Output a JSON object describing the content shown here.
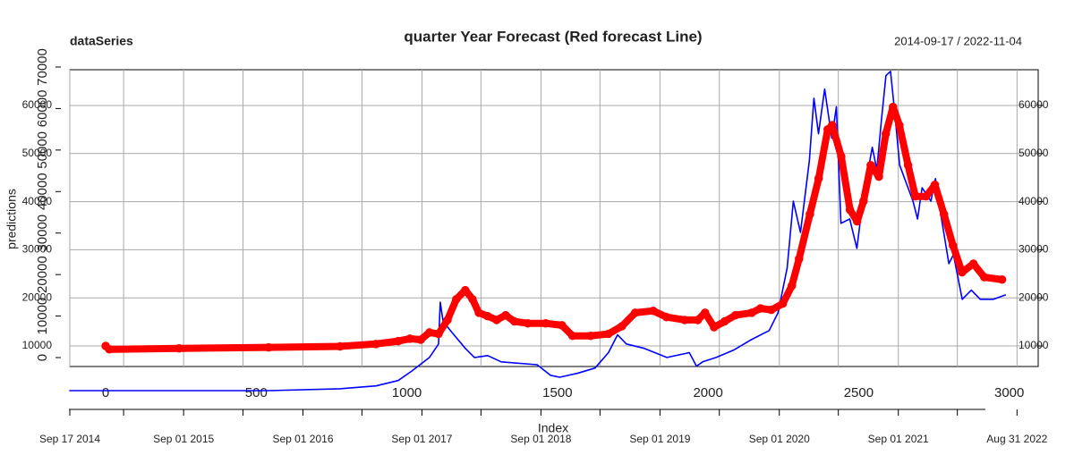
{
  "chart_data": {
    "type": "line",
    "title": "quarter Year Forecast (Red forecast Line)",
    "series_label": "dataSeries",
    "date_range": "2014-09-17 / 2022-11-04",
    "x_label": "Index",
    "y_label": "predictions",
    "grid": true,
    "xlim": [
      -119,
      3096
    ],
    "xticks": [
      0,
      500,
      1000,
      1500,
      2000,
      2500,
      3000
    ],
    "ylim": [
      5725,
      67435
    ],
    "yticks": [
      10000,
      20000,
      30000,
      40000,
      50000,
      60000
    ],
    "y2lim": [
      -2150,
      69350
    ],
    "y2ticks": [
      0,
      10000,
      20000,
      30000,
      40000,
      50000,
      60000,
      70000
    ],
    "date_xlim": [
      "2014-09-17",
      "2022-11-04"
    ],
    "date_ticks": [
      {
        "value": "2014-09-17",
        "label": "Sep 17 2014"
      },
      {
        "value": "2015-03-01",
        "label": null
      },
      {
        "value": "2015-09-01",
        "label": "Sep 01 2015"
      },
      {
        "value": "2016-03-01",
        "label": null
      },
      {
        "value": "2016-09-01",
        "label": "Sep 01 2016"
      },
      {
        "value": "2017-03-01",
        "label": null
      },
      {
        "value": "2017-09-01",
        "label": "Sep 01 2017"
      },
      {
        "value": "2018-03-01",
        "label": null
      },
      {
        "value": "2018-09-01",
        "label": "Sep 01 2018"
      },
      {
        "value": "2019-03-01",
        "label": null
      },
      {
        "value": "2019-09-01",
        "label": "Sep 01 2019"
      },
      {
        "value": "2020-03-01",
        "label": null
      },
      {
        "value": "2020-09-01",
        "label": "Sep 01 2020"
      },
      {
        "value": "2021-03-01",
        "label": null
      },
      {
        "value": "2021-09-01",
        "label": "Sep 01 2021"
      },
      {
        "value": "2022-03-01",
        "label": null
      },
      {
        "value": "2022-08-31",
        "label": "Aug 31 2022"
      }
    ],
    "series": [
      {
        "color": "#0000ff",
        "x": [
          "2014-09-17",
          "2016-05-18",
          "2016-12-24",
          "2017-04-13",
          "2017-06-20",
          "2017-08-01",
          "2017-09-24",
          "2017-10-22",
          "2017-10-27",
          "2017-11-05",
          "2017-12-02",
          "2018-01-12",
          "2018-02-09",
          "2018-03-22",
          "2018-05-02",
          "2018-08-20",
          "2018-09-30",
          "2018-10-28",
          "2018-12-21",
          "2019-02-14",
          "2019-03-27",
          "2019-04-24",
          "2019-05-21",
          "2019-07-15",
          "2019-09-22",
          "2019-11-30",
          "2019-12-22",
          "2020-01-10",
          "2020-02-20",
          "2020-04-13",
          "2020-06-07",
          "2020-08-01",
          "2020-08-28",
          "2020-09-25",
          "2020-10-14",
          "2020-11-05",
          "2020-12-02",
          "2020-12-16",
          "2020-12-30",
          "2021-01-18",
          "2021-02-09",
          "2021-02-23",
          "2021-03-09",
          "2021-04-05",
          "2021-04-27",
          "2021-05-17",
          "2021-06-13",
          "2021-06-27",
          "2021-07-11",
          "2021-07-25",
          "2021-08-08",
          "2021-08-22",
          "2021-09-05",
          "2021-10-16",
          "2021-10-30",
          "2021-11-13",
          "2021-12-10",
          "2021-12-24",
          "2022-01-07",
          "2022-02-03",
          "2022-02-17",
          "2022-03-16",
          "2022-04-13",
          "2022-05-10",
          "2022-06-20",
          "2022-07-26"
        ],
        "values": [
          700,
          700,
          1100,
          1700,
          2800,
          4800,
          7600,
          10400,
          19100,
          15100,
          12800,
          9500,
          7600,
          8000,
          6700,
          6100,
          3900,
          3500,
          4300,
          5400,
          8600,
          12300,
          10400,
          9500,
          7600,
          8600,
          5800,
          6700,
          7600,
          9100,
          11300,
          13200,
          16900,
          26200,
          40100,
          33600,
          48500,
          61500,
          54100,
          63400,
          53200,
          59700,
          35500,
          36400,
          30300,
          41100,
          51300,
          46700,
          56900,
          66200,
          67100,
          57800,
          47600,
          40100,
          36400,
          42900,
          40100,
          44800,
          38300,
          27100,
          29000,
          19700,
          21600,
          19700,
          19700,
          20600
        ]
      },
      {
        "color": "#ff0000",
        "x": [
          0,
          12,
          244,
          541,
          778,
          897,
          971,
          1010,
          1046,
          1075,
          1105,
          1135,
          1164,
          1194,
          1218,
          1239,
          1268,
          1298,
          1328,
          1357,
          1402,
          1461,
          1515,
          1550,
          1610,
          1669,
          1714,
          1758,
          1818,
          1862,
          1922,
          1966,
          1990,
          2020,
          2055,
          2091,
          2145,
          2174,
          2210,
          2248,
          2278,
          2302,
          2338,
          2367,
          2397,
          2412,
          2442,
          2471,
          2495,
          2516,
          2540,
          2567,
          2590,
          2614,
          2635,
          2664,
          2688,
          2724,
          2753,
          2783,
          2813,
          2843,
          2881,
          2917,
          2976
        ],
        "values": [
          10000,
          9300,
          9500,
          9700,
          9900,
          10400,
          11000,
          11500,
          11300,
          12800,
          12500,
          15400,
          19700,
          21600,
          19700,
          16900,
          16200,
          15400,
          16400,
          15100,
          14700,
          14700,
          14300,
          12100,
          12100,
          12500,
          14100,
          16900,
          17300,
          16000,
          15400,
          15400,
          16900,
          13900,
          15100,
          16400,
          16900,
          17800,
          17500,
          18800,
          22500,
          28100,
          37400,
          44800,
          55000,
          55900,
          49400,
          38300,
          35900,
          40100,
          47600,
          45200,
          54100,
          59700,
          55900,
          47600,
          41100,
          41100,
          43500,
          37400,
          30900,
          25300,
          27100,
          24300,
          23800
        ]
      }
    ]
  }
}
